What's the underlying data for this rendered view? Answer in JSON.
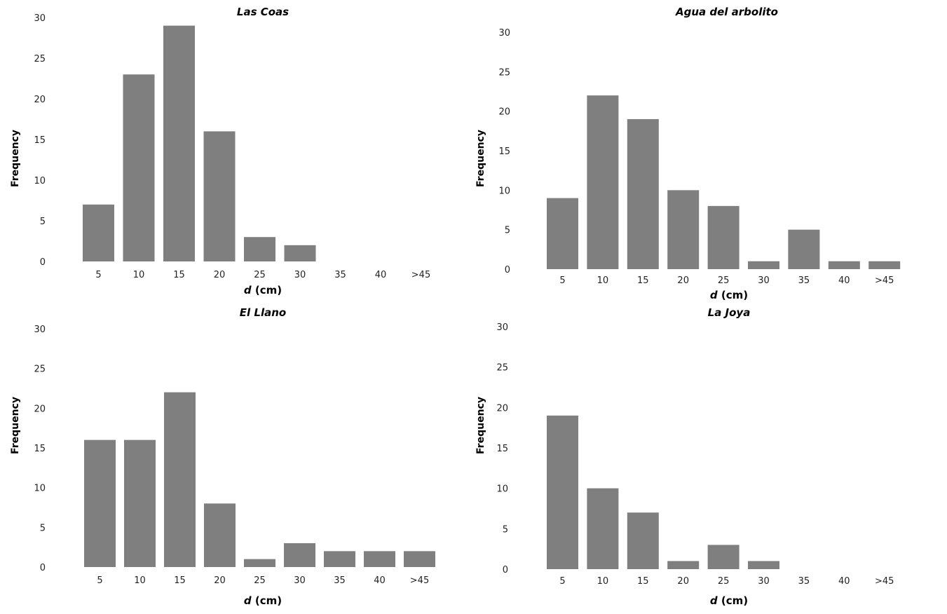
{
  "chart_data": [
    {
      "type": "bar",
      "title": "Las Coas",
      "xlabel_var": "d",
      "xlabel_unit": "(cm)",
      "ylabel": "Frequency",
      "categories": [
        "5",
        "10",
        "15",
        "20",
        "25",
        "30",
        "35",
        "40",
        ">45"
      ],
      "values": [
        7,
        23,
        29,
        16,
        3,
        2,
        0,
        0,
        0
      ],
      "yticks": [
        "0",
        "5",
        "10",
        "15",
        "20",
        "25",
        "30"
      ],
      "ylim": [
        0,
        30
      ],
      "grid": false
    },
    {
      "type": "bar",
      "title": "Agua del arbolito",
      "xlabel_var": "d",
      "xlabel_unit": "(cm)",
      "ylabel": "Frequency",
      "categories": [
        "5",
        "10",
        "15",
        "20",
        "25",
        "30",
        "35",
        "40",
        ">45"
      ],
      "values": [
        9,
        22,
        19,
        10,
        8,
        1,
        5,
        1,
        1
      ],
      "yticks": [
        "0",
        "5",
        "10",
        "15",
        "20",
        "25",
        "30"
      ],
      "ylim": [
        0,
        30
      ],
      "grid": false
    },
    {
      "type": "bar",
      "title": "El Llano",
      "xlabel_var": "d",
      "xlabel_unit": "(cm)",
      "ylabel": "Frequency",
      "categories": [
        "5",
        "10",
        "15",
        "20",
        "25",
        "30",
        "35",
        "40",
        ">45"
      ],
      "values": [
        16,
        16,
        22,
        8,
        1,
        3,
        2,
        2,
        2
      ],
      "yticks": [
        "0",
        "5",
        "10",
        "15",
        "20",
        "25",
        "30"
      ],
      "ylim": [
        0,
        30
      ],
      "grid": false
    },
    {
      "type": "bar",
      "title": "La Joya",
      "xlabel_var": "d",
      "xlabel_unit": "(cm)",
      "ylabel": "Frequency",
      "categories": [
        "5",
        "10",
        "15",
        "20",
        "25",
        "30",
        "35",
        "40",
        ">45"
      ],
      "values": [
        19,
        10,
        7,
        1,
        3,
        1,
        0,
        0,
        0
      ],
      "yticks": [
        "0",
        "5",
        "10",
        "15",
        "20",
        "25",
        "30"
      ],
      "ylim": [
        0,
        30
      ],
      "grid": false
    }
  ]
}
